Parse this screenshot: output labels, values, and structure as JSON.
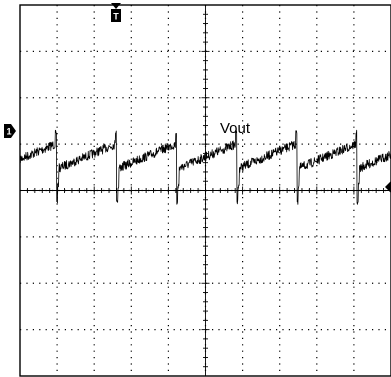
{
  "chart_data": {
    "type": "line",
    "title": "",
    "xlabel": "",
    "ylabel": "",
    "grid": true,
    "divisions": {
      "x": 10,
      "y": 8
    },
    "xlim": [
      0,
      10
    ],
    "ylim": [
      -4,
      4
    ],
    "trigger_marker": "T",
    "channel_marker": "1",
    "channel_offset_div": 0.85,
    "series": [
      {
        "name": "Vout",
        "color": "#000000",
        "ripple_period_div": 1.62,
        "first_spike_div": 0.95,
        "ramp_low_div": 0.45,
        "ramp_high_div": 1.0,
        "noise_div": 0.1,
        "spike_top_div": 1.3,
        "spike_bottom_div": -0.3
      }
    ]
  }
}
